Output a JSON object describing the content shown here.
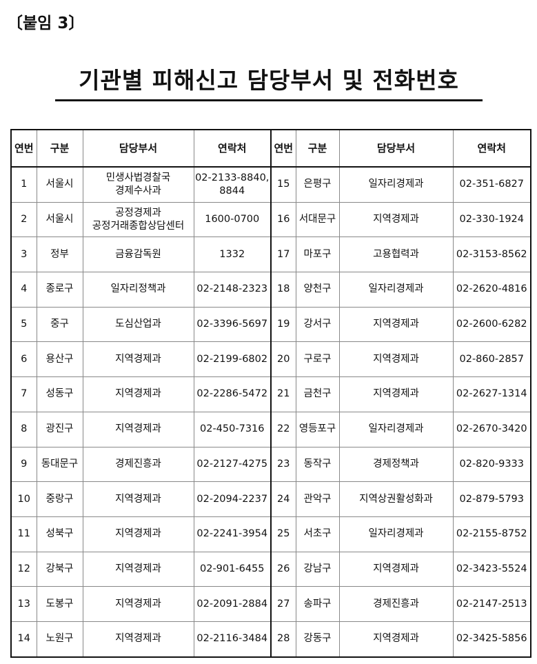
{
  "attachment_label": "〔붙임 3〕",
  "title": "기관별 피해신고 담당부서 및 전화번호",
  "headers": [
    "연번",
    "구분",
    "담당부서",
    "연락처"
  ],
  "rows": [
    {
      "no": "1",
      "area": "서울시",
      "dept": "민생사법경찰국\n경제수사과",
      "phone": "02-2133-8840,\n8844"
    },
    {
      "no": "2",
      "area": "서울시",
      "dept": "공정경제과\n공정거래종합상담센터",
      "phone": "1600-0700"
    },
    {
      "no": "3",
      "area": "정부",
      "dept": "금융감독원",
      "phone": "1332"
    },
    {
      "no": "4",
      "area": "종로구",
      "dept": "일자리정책과",
      "phone": "02-2148-2323"
    },
    {
      "no": "5",
      "area": "중구",
      "dept": "도심산업과",
      "phone": "02-3396-5697"
    },
    {
      "no": "6",
      "area": "용산구",
      "dept": "지역경제과",
      "phone": "02-2199-6802"
    },
    {
      "no": "7",
      "area": "성동구",
      "dept": "지역경제과",
      "phone": "02-2286-5472"
    },
    {
      "no": "8",
      "area": "광진구",
      "dept": "지역경제과",
      "phone": "02-450-7316"
    },
    {
      "no": "9",
      "area": "동대문구",
      "dept": "경제진흥과",
      "phone": "02-2127-4275"
    },
    {
      "no": "10",
      "area": "중랑구",
      "dept": "지역경제과",
      "phone": "02-2094-2237"
    },
    {
      "no": "11",
      "area": "성북구",
      "dept": "지역경제과",
      "phone": "02-2241-3954"
    },
    {
      "no": "12",
      "area": "강북구",
      "dept": "지역경제과",
      "phone": "02-901-6455"
    },
    {
      "no": "13",
      "area": "도봉구",
      "dept": "지역경제과",
      "phone": "02-2091-2884"
    },
    {
      "no": "14",
      "area": "노원구",
      "dept": "지역경제과",
      "phone": "02-2116-3484"
    },
    {
      "no": "15",
      "area": "은평구",
      "dept": "일자리경제과",
      "phone": "02-351-6827"
    },
    {
      "no": "16",
      "area": "서대문구",
      "dept": "지역경제과",
      "phone": "02-330-1924"
    },
    {
      "no": "17",
      "area": "마포구",
      "dept": "고용협력과",
      "phone": "02-3153-8562"
    },
    {
      "no": "18",
      "area": "양천구",
      "dept": "일자리경제과",
      "phone": "02-2620-4816"
    },
    {
      "no": "19",
      "area": "강서구",
      "dept": "지역경제과",
      "phone": "02-2600-6282"
    },
    {
      "no": "20",
      "area": "구로구",
      "dept": "지역경제과",
      "phone": "02-860-2857"
    },
    {
      "no": "21",
      "area": "금천구",
      "dept": "지역경제과",
      "phone": "02-2627-1314"
    },
    {
      "no": "22",
      "area": "영등포구",
      "dept": "일자리경제과",
      "phone": "02-2670-3420"
    },
    {
      "no": "23",
      "area": "동작구",
      "dept": "경제정책과",
      "phone": "02-820-9333"
    },
    {
      "no": "24",
      "area": "관악구",
      "dept": "지역상권활성화과",
      "phone": "02-879-5793"
    },
    {
      "no": "25",
      "area": "서초구",
      "dept": "일자리경제과",
      "phone": "02-2155-8752"
    },
    {
      "no": "26",
      "area": "강남구",
      "dept": "지역경제과",
      "phone": "02-3423-5524"
    },
    {
      "no": "27",
      "area": "송파구",
      "dept": "경제진흥과",
      "phone": "02-2147-2513"
    },
    {
      "no": "28",
      "area": "강동구",
      "dept": "지역경제과",
      "phone": "02-3425-5856"
    }
  ]
}
